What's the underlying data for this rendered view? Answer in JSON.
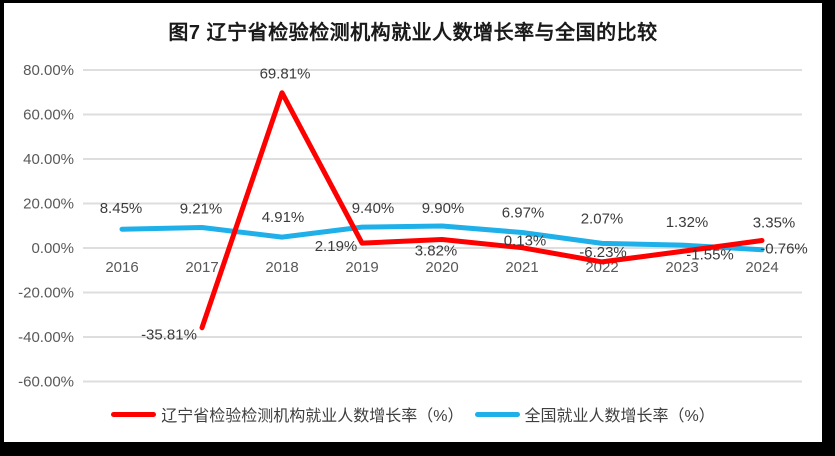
{
  "chart_data": {
    "type": "line",
    "title": "图7 辽宁省检验检测机构就业人数增长率与全国的比较",
    "categories": [
      "2016",
      "2017",
      "2018",
      "2019",
      "2020",
      "2021",
      "2022",
      "2023",
      "2024"
    ],
    "series": [
      {
        "name": "辽宁省检验检测机构就业人数增长率（%）",
        "color": "#fe0000",
        "values": [
          null,
          -35.81,
          69.81,
          2.19,
          3.82,
          0.13,
          -6.23,
          -1.55,
          3.35
        ],
        "labels": [
          "",
          "-35.81%",
          "69.81%",
          "2.19%",
          "3.82%",
          "0.13%",
          "-6.23%",
          "-1.55%",
          "3.35%"
        ]
      },
      {
        "name": "全国就业人数增长率（%）",
        "color": "#1fb0ea",
        "values": [
          8.45,
          9.21,
          4.91,
          9.4,
          9.9,
          6.97,
          2.07,
          1.32,
          -0.76
        ],
        "labels": [
          "8.45%",
          "9.21%",
          "4.91%",
          "9.40%",
          "9.90%",
          "6.97%",
          "2.07%",
          "1.32%",
          "-0.76%"
        ]
      }
    ],
    "y_axis": {
      "max": 80,
      "min": -60,
      "step": 20,
      "tick_labels": [
        "80.00%",
        "60.00%",
        "40.00%",
        "20.00%",
        "0.00%",
        "-20.00%",
        "-40.00%",
        "-60.00%"
      ]
    },
    "grid": true,
    "legend_position": "bottom",
    "colors": {
      "gridline": "#dedede",
      "axis_text": "#595959",
      "data_label_text": "#3b3b3b",
      "frame_border": "#000000"
    }
  }
}
